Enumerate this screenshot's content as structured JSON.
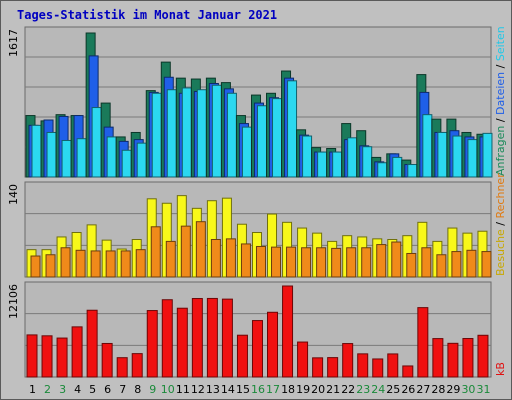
{
  "page": {
    "title": "Tages-Statistik im Monat Januar 2021"
  },
  "colors": {
    "background": "#c0c0c0",
    "panel": "#b8b8b8",
    "title": "#0000c0",
    "hits": "#1a7a5a",
    "files": "#1f5fe8",
    "pages": "#2bd8f0",
    "visits": "#f8f81a",
    "sites": "#f08a1a",
    "kbytes": "#f01010",
    "day_weekday": "#000000",
    "day_weekend": "#1a8a3a"
  },
  "chart_data": [
    {
      "type": "bar",
      "panel": "top",
      "ymax_label": "1617",
      "legend_vertical": [
        {
          "text": "Anfragen",
          "color": "#1a8a5a"
        },
        {
          "text": " / ",
          "color": "#000000"
        },
        {
          "text": "Dateien",
          "color": "#1f5fe8"
        },
        {
          "text": " / ",
          "color": "#000000"
        },
        {
          "text": "Seiten",
          "color": "#20c8e8"
        }
      ],
      "ymax": 1617,
      "categories": [
        "1",
        "2",
        "3",
        "4",
        "5",
        "6",
        "7",
        "8",
        "9",
        "10",
        "11",
        "12",
        "13",
        "14",
        "15",
        "16",
        "17",
        "18",
        "19",
        "20",
        "21",
        "22",
        "23",
        "24",
        "25",
        "26",
        "27",
        "28",
        "29",
        "30",
        "31"
      ],
      "series": [
        {
          "name": "Anfragen",
          "values": [
            690,
            630,
            700,
            690,
            1617,
            830,
            450,
            500,
            970,
            1290,
            1110,
            1100,
            1110,
            1060,
            690,
            920,
            940,
            1190,
            530,
            330,
            320,
            600,
            520,
            220,
            260,
            190,
            1150,
            650,
            650,
            500,
            480
          ]
        },
        {
          "name": "Dateien",
          "values": [
            580,
            640,
            680,
            690,
            1360,
            560,
            400,
            420,
            950,
            1120,
            940,
            960,
            1050,
            990,
            600,
            830,
            890,
            1110,
            470,
            280,
            280,
            420,
            350,
            170,
            260,
            140,
            950,
            500,
            520,
            450,
            450
          ]
        },
        {
          "name": "Seiten",
          "values": [
            580,
            500,
            410,
            430,
            780,
            450,
            300,
            380,
            940,
            980,
            1000,
            980,
            1030,
            940,
            560,
            800,
            880,
            1080,
            460,
            280,
            280,
            440,
            340,
            160,
            220,
            140,
            700,
            500,
            460,
            420,
            490
          ]
        }
      ]
    },
    {
      "type": "bar",
      "panel": "middle",
      "ymax_label": "140",
      "legend_vertical": [
        {
          "text": "Besuche",
          "color": "#c8a800"
        },
        {
          "text": " / ",
          "color": "#000000"
        },
        {
          "text": "Rechner",
          "color": "#e07a10"
        }
      ],
      "ymax": 140,
      "categories": [
        "1",
        "2",
        "3",
        "4",
        "5",
        "6",
        "7",
        "8",
        "9",
        "10",
        "11",
        "12",
        "13",
        "14",
        "15",
        "16",
        "17",
        "18",
        "19",
        "20",
        "21",
        "22",
        "23",
        "24",
        "25",
        "26",
        "27",
        "28",
        "29",
        "30",
        "31"
      ],
      "series": [
        {
          "name": "Besuche",
          "values": [
            43,
            43,
            63,
            70,
            82,
            58,
            44,
            59,
            123,
            116,
            128,
            108,
            120,
            124,
            83,
            70,
            99,
            86,
            77,
            69,
            56,
            65,
            63,
            60,
            59,
            65,
            86,
            56,
            77,
            69,
            72
          ]
        },
        {
          "name": "Rechner",
          "values": [
            33,
            35,
            46,
            42,
            41,
            41,
            41,
            43,
            79,
            56,
            80,
            87,
            59,
            60,
            52,
            48,
            47,
            47,
            46,
            46,
            45,
            46,
            46,
            51,
            55,
            37,
            46,
            35,
            40,
            42,
            40
          ]
        }
      ]
    },
    {
      "type": "bar",
      "panel": "bottom",
      "ymax_label": "12106",
      "legend_vertical": [
        {
          "text": "kB",
          "color": "#e01010"
        }
      ],
      "ymax": 12106,
      "categories": [
        "1",
        "2",
        "3",
        "4",
        "5",
        "6",
        "7",
        "8",
        "9",
        "10",
        "11",
        "12",
        "13",
        "14",
        "15",
        "16",
        "17",
        "18",
        "19",
        "20",
        "21",
        "22",
        "23",
        "24",
        "25",
        "26",
        "27",
        "28",
        "29",
        "30",
        "31"
      ],
      "series": [
        {
          "name": "kB",
          "values": [
            5600,
            5480,
            5180,
            6670,
            8880,
            4460,
            2570,
            3110,
            8840,
            10280,
            9150,
            10440,
            10450,
            10360,
            5560,
            7510,
            8610,
            12106,
            4650,
            2550,
            2580,
            4450,
            3080,
            2400,
            3070,
            1470,
            9230,
            5110,
            4480,
            5120,
            5550
          ]
        }
      ]
    }
  ],
  "day_labels": [
    "1",
    "2",
    "3",
    "4",
    "5",
    "6",
    "7",
    "8",
    "9",
    "10",
    "11",
    "12",
    "13",
    "14",
    "15",
    "16",
    "17",
    "18",
    "19",
    "20",
    "21",
    "22",
    "23",
    "24",
    "25",
    "26",
    "27",
    "28",
    "29",
    "30",
    "31"
  ],
  "weekend_days": [
    2,
    3,
    9,
    10,
    16,
    17,
    23,
    24,
    30,
    31
  ]
}
